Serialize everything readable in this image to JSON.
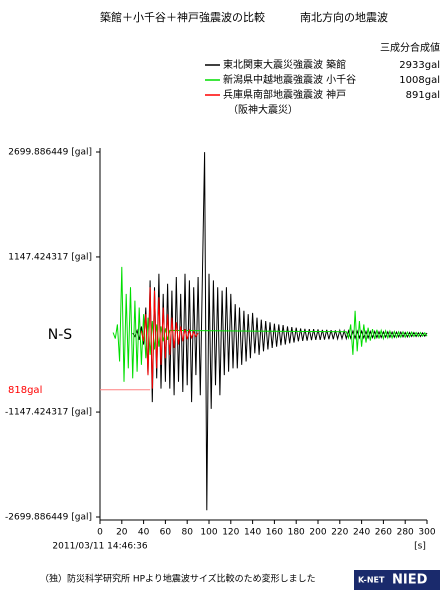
{
  "chart_data": {
    "type": "line",
    "title": "築館＋小千谷＋神戸強震波の比較",
    "subtitle": "南北方向の地震波",
    "legend_title": "三成分合成値",
    "component_label": "N-S",
    "x_label": "2011/03/11 14:46:36",
    "x_unit": "[s]",
    "footer": "（独）防災科学研究所 HPより地震波サイズ比較のため変形しました",
    "logo": {
      "left": "K-NET",
      "right": "NIED"
    },
    "xlim": [
      0,
      300
    ],
    "xticks": [
      0,
      20,
      40,
      60,
      80,
      100,
      120,
      140,
      160,
      180,
      200,
      220,
      240,
      260,
      280,
      300
    ],
    "ylim": [
      -2699.886449,
      2699.886449
    ],
    "yticks": [
      {
        "value": -2699.886449,
        "label": "-2699.886449 [gal]"
      },
      {
        "value": -1147.424317,
        "label": "-1147.424317 [gal]"
      },
      {
        "value": 1147.424317,
        "label": "1147.424317 [gal]"
      },
      {
        "value": 2699.886449,
        "label": "2699.886449 [gal]"
      }
    ],
    "annotations": [
      {
        "value": -818,
        "label": "818gal",
        "color": "#ff0000"
      }
    ],
    "series": [
      {
        "name": "東北関東大震災強震波 築館",
        "peak_label": "2933gal",
        "color": "#000000",
        "x": [
          30,
          32,
          34,
          36,
          38,
          40,
          42,
          44,
          46,
          48,
          50,
          52,
          54,
          56,
          58,
          60,
          62,
          64,
          66,
          68,
          70,
          72,
          74,
          76,
          78,
          80,
          82,
          84,
          86,
          88,
          90,
          92,
          94,
          96,
          98,
          100,
          102,
          104,
          106,
          108,
          110,
          112,
          114,
          116,
          118,
          120,
          122,
          124,
          126,
          128,
          130,
          132,
          134,
          136,
          138,
          140,
          142,
          144,
          146,
          148,
          150,
          152,
          154,
          156,
          158,
          160,
          162,
          164,
          166,
          168,
          170,
          172,
          174,
          176,
          178,
          180,
          182,
          184,
          186,
          188,
          190,
          192,
          194,
          196,
          198,
          200,
          202,
          204,
          206,
          208,
          210,
          212,
          214,
          216,
          218,
          220,
          222,
          224,
          226,
          228,
          230,
          232,
          234,
          236,
          238,
          240,
          242,
          244,
          246,
          248,
          250,
          252,
          254,
          256,
          258,
          260,
          262,
          264,
          266,
          268,
          270,
          272,
          274,
          276,
          278,
          280,
          282,
          284,
          286,
          288,
          290,
          292,
          294,
          296,
          298,
          300
        ],
        "values": [
          20,
          -30,
          60,
          -80,
          120,
          -150,
          400,
          -600,
          800,
          -1000,
          700,
          -650,
          900,
          -800,
          600,
          -700,
          750,
          -800,
          650,
          -900,
          850,
          -700,
          600,
          -850,
          900,
          -750,
          800,
          -1000,
          700,
          -600,
          850,
          -900,
          950,
          2699,
          -2600,
          900,
          -1100,
          800,
          -750,
          700,
          -900,
          650,
          -600,
          700,
          -550,
          600,
          -500,
          450,
          -500,
          400,
          -450,
          350,
          -400,
          300,
          -350,
          320,
          -280,
          250,
          -300,
          220,
          -250,
          200,
          -220,
          180,
          -200,
          160,
          -180,
          150,
          -160,
          140,
          -150,
          120,
          -130,
          110,
          -120,
          100,
          -100,
          90,
          -95,
          85,
          -90,
          80,
          -85,
          80,
          -80,
          75,
          -80,
          70,
          -75,
          70,
          -70,
          65,
          -70,
          60,
          -65,
          60,
          -60,
          55,
          -60,
          55,
          -55,
          50,
          -55,
          50,
          -50,
          50,
          -50,
          45,
          -50,
          45,
          -45,
          45,
          -45,
          40,
          -45,
          40,
          -40,
          40,
          -40,
          35,
          -40,
          35,
          -35,
          35,
          -35,
          30,
          -35,
          30,
          -30,
          30,
          -30,
          25,
          -30,
          25,
          -25,
          20
        ]
      },
      {
        "name": "新潟県中越地震強震波 小千谷",
        "peak_label": "1008gal",
        "color": "#00dd00",
        "x": [
          12,
          14,
          16,
          18,
          20,
          22,
          24,
          26,
          28,
          30,
          32,
          34,
          36,
          38,
          40,
          42,
          44,
          46,
          48,
          50,
          52,
          54,
          56,
          58,
          60,
          62,
          64,
          226,
          228,
          230,
          232,
          234,
          236,
          238,
          240,
          242,
          244,
          246,
          248,
          250,
          252,
          254,
          256,
          258,
          260,
          262,
          264,
          266,
          268,
          270,
          272,
          274,
          276,
          278,
          280,
          282,
          284,
          286,
          288,
          290,
          292,
          294,
          296,
          298,
          300
        ],
        "values": [
          30,
          -60,
          150,
          -400,
          1000,
          -700,
          600,
          -500,
          700,
          -650,
          500,
          -550,
          400,
          -450,
          300,
          -350,
          250,
          -300,
          200,
          -220,
          150,
          -180,
          120,
          -100,
          90,
          -80,
          60,
          40,
          -50,
          150,
          -300,
          350,
          -250,
          200,
          -180,
          150,
          -120,
          100,
          -90,
          80,
          -70,
          70,
          -60,
          60,
          -60,
          55,
          -50,
          50,
          -50,
          45,
          -45,
          40,
          -40,
          40,
          -40,
          35,
          -35,
          35,
          -30,
          30,
          -30,
          30,
          -25,
          25,
          -25
        ]
      },
      {
        "name": "兵庫県南部地震強震波 神戸",
        "peak_label": "891gal",
        "note": "（阪神大震災）",
        "color": "#ff0000",
        "x": [
          38,
          40,
          42,
          44,
          46,
          48,
          50,
          52,
          54,
          56,
          58,
          60,
          62,
          64,
          66,
          68,
          70,
          72,
          74,
          76,
          78,
          80,
          82,
          84,
          86,
          88,
          90
        ],
        "values": [
          50,
          -100,
          300,
          -600,
          700,
          -800,
          650,
          -500,
          550,
          -450,
          400,
          -350,
          300,
          -300,
          250,
          -200,
          180,
          -150,
          120,
          -100,
          80,
          -70,
          60,
          -50,
          40,
          -30,
          20
        ]
      }
    ]
  }
}
